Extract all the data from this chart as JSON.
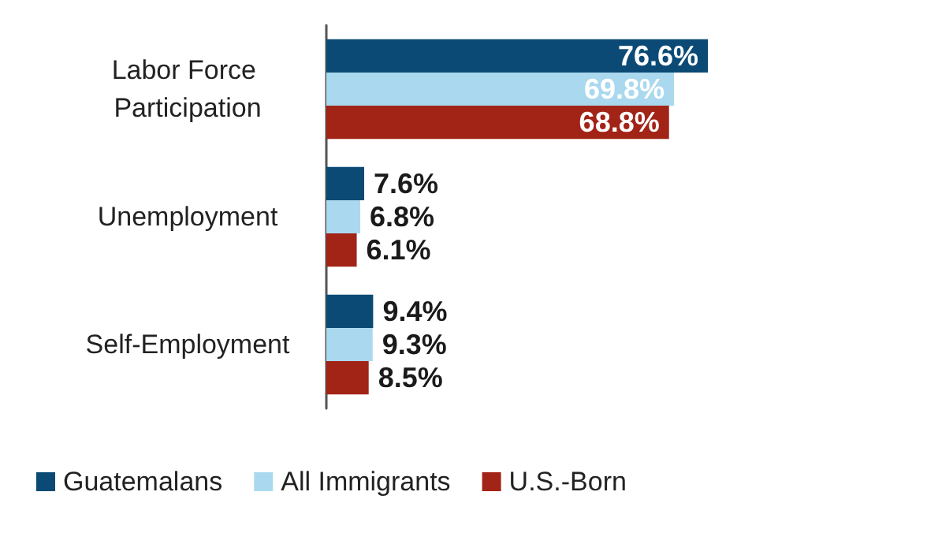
{
  "chart_data": {
    "type": "bar",
    "orientation": "horizontal",
    "categories": [
      "Labor Force Participation",
      "Unemployment",
      "Self-Employment"
    ],
    "series": [
      {
        "name": "Guatemalans",
        "color": "#0b4a75",
        "values": [
          76.6,
          7.6,
          9.4
        ],
        "value_labels": [
          "76.6%",
          "7.6%",
          "9.4%"
        ]
      },
      {
        "name": "All Immigrants",
        "color": "#aad9ef",
        "values": [
          69.8,
          6.8,
          9.3
        ],
        "value_labels": [
          "69.8%",
          "6.8%",
          "9.3%"
        ]
      },
      {
        "name": "U.S.-Born",
        "color": "#a22417",
        "values": [
          68.8,
          6.1,
          8.5
        ],
        "value_labels": [
          "68.8%",
          "6.1%",
          "8.5%"
        ]
      }
    ],
    "legend": "bottom"
  }
}
